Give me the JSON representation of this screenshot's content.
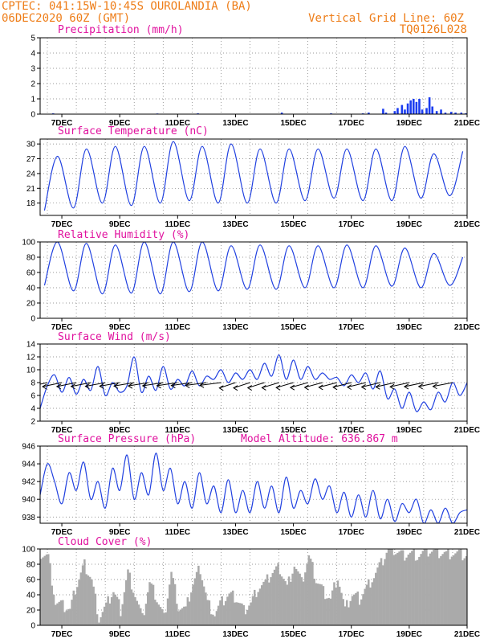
{
  "header": {
    "line1_left": "CPTEC:   041:15W-10:45S  OUROLANDIA (BA)",
    "line2_left": "06DEC2020 60Z (GMT)",
    "line1_right": "Vertical Grid Line: 60Z",
    "line2_right": "TQ0126L028"
  },
  "colors": {
    "header_text": "#ee7d18",
    "panel_title": "#e0119e",
    "series_line": "#2040e0",
    "precip_bars": "#1a3cf0",
    "cloud_bars": "#aaaaaa"
  },
  "x_axis": {
    "start": "06DEC2020 06Z",
    "end": "21DEC2020 00Z",
    "tick_labels": [
      "7DEC",
      "9DEC",
      "11DEC",
      "13DEC",
      "15DEC",
      "17DEC",
      "19DEC",
      "21DEC"
    ],
    "vertical_grid_line": "60Z"
  },
  "chart_data": [
    {
      "type": "bar",
      "title": "Precipitation (mm/h)",
      "ylim": [
        0,
        5
      ],
      "yticks": [
        0,
        1,
        2,
        3,
        4,
        5
      ],
      "x_unit": "day of December 2020",
      "x": [
        6.7,
        10.3,
        11.7,
        14.6,
        16.3,
        17.4,
        17.6,
        18.1,
        18.2,
        18.5,
        18.6,
        18.75,
        18.85,
        18.95,
        19.05,
        19.15,
        19.25,
        19.35,
        19.45,
        19.6,
        19.7,
        19.8,
        19.95,
        20.1,
        20.25,
        20.45,
        20.6,
        20.8,
        20.95
      ],
      "values": [
        0.05,
        0.04,
        0.05,
        0.1,
        0.05,
        0.05,
        0.1,
        0.35,
        0.1,
        0.2,
        0.4,
        0.6,
        0.3,
        0.7,
        0.9,
        1.0,
        0.8,
        1.0,
        0.3,
        0.4,
        1.1,
        0.5,
        0.2,
        0.3,
        0.1,
        0.15,
        0.1,
        0.1,
        0.05
      ]
    },
    {
      "type": "line",
      "title": "Surface Temperature (nC)",
      "ylim": [
        15.5,
        31
      ],
      "yticks": [
        18,
        21,
        24,
        27,
        30
      ],
      "x_unit": "day of December 2020",
      "daily_min": [
        16.5,
        17,
        18,
        17.5,
        18,
        18.5,
        18,
        18,
        18,
        18.5,
        19,
        18.5,
        18.5,
        19,
        19.5
      ],
      "daily_max": [
        27.5,
        29,
        29.5,
        29.5,
        30.5,
        29.5,
        30,
        29,
        29,
        29,
        29,
        29,
        29.5,
        28,
        28.5
      ]
    },
    {
      "type": "line",
      "title": "Relative Humidity (%)",
      "ylim": [
        0,
        100
      ],
      "yticks": [
        0,
        20,
        40,
        60,
        80,
        100
      ],
      "x_unit": "day of December 2020",
      "daily_min": [
        43,
        36,
        32,
        33,
        32,
        35,
        36,
        38,
        38,
        40,
        40,
        40,
        42,
        40,
        43
      ],
      "daily_max": [
        100,
        98,
        96,
        100,
        100,
        100,
        95,
        96,
        95,
        95,
        96,
        95,
        92,
        85,
        80
      ]
    },
    {
      "type": "line",
      "title": "Surface Wind (m/s)",
      "ylim": [
        2,
        14
      ],
      "yticks": [
        2,
        4,
        6,
        8,
        10,
        12,
        14
      ],
      "x_unit": "day of December 2020",
      "x": [
        6.25,
        6.5,
        6.75,
        7.0,
        7.25,
        7.5,
        7.75,
        8.0,
        8.25,
        8.5,
        8.75,
        9.0,
        9.25,
        9.5,
        9.75,
        10.0,
        10.25,
        10.5,
        10.75,
        11.0,
        11.25,
        11.5,
        11.75,
        12.0,
        12.25,
        12.5,
        12.75,
        13.0,
        13.25,
        13.5,
        13.75,
        14.0,
        14.25,
        14.5,
        14.75,
        15.0,
        15.25,
        15.5,
        15.75,
        16.0,
        16.25,
        16.5,
        16.75,
        17.0,
        17.25,
        17.5,
        17.75,
        18.0,
        18.25,
        18.5,
        18.75,
        19.0,
        19.25,
        19.5,
        19.75,
        20.0,
        20.25,
        20.5,
        20.75,
        21.0
      ],
      "values": [
        4.0,
        7.5,
        9.2,
        6.5,
        8.8,
        6.2,
        8.5,
        6.8,
        10.5,
        6.0,
        8.0,
        6.5,
        7.5,
        12.0,
        6.5,
        9.0,
        6.8,
        10.5,
        7.0,
        8.5,
        7.5,
        9.8,
        7.5,
        9.0,
        8.5,
        10.0,
        8.0,
        9.5,
        8.5,
        10.0,
        8.5,
        11.0,
        9.0,
        12.3,
        8.5,
        11.5,
        8.5,
        10.5,
        8.5,
        9.5,
        8.5,
        8.8,
        7.5,
        9.2,
        8.0,
        9.5,
        7.0,
        9.8,
        5.5,
        7.0,
        4.0,
        6.5,
        3.5,
        5.0,
        3.8,
        6.5,
        5.0,
        8.0,
        6.0,
        8.0
      ],
      "barbs_note": "wind arrows drawn along the series"
    },
    {
      "type": "line",
      "title": "Surface Pressure (hPa)",
      "subtitle": "Model Altitude: 636.867 m",
      "ylim": [
        937.3,
        946
      ],
      "yticks": [
        938,
        940,
        942,
        944,
        946
      ],
      "x_unit": "day of December 2020",
      "x": [
        6.25,
        6.5,
        6.75,
        7.0,
        7.25,
        7.5,
        7.75,
        8.0,
        8.25,
        8.5,
        8.75,
        9.0,
        9.25,
        9.5,
        9.75,
        10.0,
        10.25,
        10.5,
        10.75,
        11.0,
        11.25,
        11.5,
        11.75,
        12.0,
        12.25,
        12.5,
        12.75,
        13.0,
        13.25,
        13.5,
        13.75,
        14.0,
        14.25,
        14.5,
        14.75,
        15.0,
        15.25,
        15.5,
        15.75,
        16.0,
        16.25,
        16.5,
        16.75,
        17.0,
        17.25,
        17.5,
        17.75,
        18.0,
        18.25,
        18.5,
        18.75,
        19.0,
        19.25,
        19.5,
        19.75,
        20.0,
        20.25,
        20.5,
        20.75,
        21.0
      ],
      "values": [
        940.5,
        944.0,
        942.0,
        939.5,
        943.0,
        941.0,
        944.2,
        940.0,
        942.0,
        939.0,
        943.5,
        941.0,
        945.0,
        940.0,
        943.0,
        940.5,
        945.2,
        941.0,
        943.5,
        939.5,
        942.0,
        939.0,
        943.0,
        939.5,
        941.5,
        938.5,
        942.2,
        938.5,
        941.0,
        938.5,
        942.0,
        939.0,
        941.5,
        938.5,
        942.5,
        939.0,
        941.0,
        939.5,
        942.3,
        940.0,
        941.5,
        938.5,
        940.8,
        938.0,
        940.5,
        938.0,
        941.0,
        937.8,
        940.0,
        937.5,
        939.5,
        938.5,
        940.0,
        937.3,
        938.8,
        937.3,
        939.0,
        937.3,
        938.5,
        938.8
      ]
    },
    {
      "type": "bar",
      "title": "Cloud Cover (%)",
      "ylim": [
        0,
        100
      ],
      "yticks": [
        0,
        20,
        40,
        60,
        80,
        100
      ],
      "x_unit": "day of December 2020",
      "x": [
        6.25,
        6.5,
        6.75,
        7.0,
        7.25,
        7.5,
        7.75,
        8.0,
        8.25,
        8.5,
        8.75,
        9.0,
        9.25,
        9.5,
        9.75,
        10.0,
        10.25,
        10.5,
        10.75,
        11.0,
        11.25,
        11.5,
        11.75,
        12.0,
        12.25,
        12.5,
        12.75,
        13.0,
        13.25,
        13.5,
        13.75,
        14.0,
        14.25,
        14.5,
        14.75,
        15.0,
        15.25,
        15.5,
        15.75,
        16.0,
        16.25,
        16.5,
        16.75,
        17.0,
        17.25,
        17.5,
        17.75,
        18.0,
        18.25,
        18.5,
        18.75,
        19.0,
        19.25,
        19.5,
        19.75,
        20.0,
        20.25,
        20.5,
        20.75,
        21.0
      ],
      "values": [
        95,
        90,
        30,
        25,
        20,
        55,
        80,
        60,
        10,
        25,
        45,
        20,
        70,
        40,
        8,
        55,
        35,
        10,
        70,
        25,
        20,
        55,
        75,
        30,
        15,
        30,
        40,
        35,
        20,
        30,
        50,
        55,
        70,
        75,
        50,
        80,
        55,
        90,
        60,
        45,
        35,
        65,
        20,
        40,
        35,
        50,
        65,
        80,
        100,
        98,
        92,
        95,
        92,
        95,
        98,
        96,
        94,
        95,
        92,
        90
      ]
    }
  ]
}
